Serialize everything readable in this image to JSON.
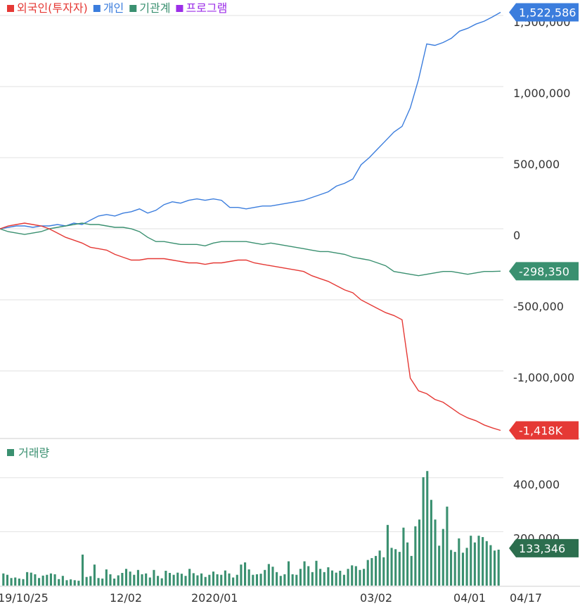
{
  "chart_data": [
    {
      "type": "line",
      "legend": [
        {
          "name": "외국인(투자자)",
          "color": "#e53935"
        },
        {
          "name": "개인",
          "color": "#3b7ddd"
        },
        {
          "name": "기관계",
          "color": "#3a9070"
        },
        {
          "name": "프로그램",
          "color": "#9c2ee8"
        }
      ],
      "y_ticks": [
        {
          "value": 1500000,
          "label": "1,500,000"
        },
        {
          "value": 1000000,
          "label": "1,000,000"
        },
        {
          "value": 500000,
          "label": "500,000"
        },
        {
          "value": 0,
          "label": "0"
        },
        {
          "value": -500000,
          "label": "-500,000"
        },
        {
          "value": -1000000,
          "label": "-1,000,000"
        }
      ],
      "ylim": [
        -1470000,
        1520000
      ],
      "grid": true,
      "x_ticks": [
        "19/10/25",
        "12/02",
        "2020/01",
        "03/02",
        "04/01",
        "04/17"
      ],
      "series": [
        {
          "name": "개인",
          "color": "#3b7ddd",
          "last_label": "1,522,586",
          "values": [
            0,
            10000,
            20000,
            20000,
            10000,
            20000,
            20000,
            30000,
            20000,
            40000,
            30000,
            60000,
            90000,
            100000,
            90000,
            110000,
            120000,
            140000,
            110000,
            130000,
            170000,
            190000,
            180000,
            200000,
            210000,
            200000,
            210000,
            200000,
            150000,
            150000,
            140000,
            150000,
            160000,
            160000,
            170000,
            180000,
            190000,
            200000,
            220000,
            240000,
            260000,
            300000,
            320000,
            350000,
            450000,
            500000,
            560000,
            620000,
            680000,
            720000,
            850000,
            1050000,
            1300000,
            1290000,
            1310000,
            1340000,
            1390000,
            1410000,
            1440000,
            1460000,
            1490000,
            1522586
          ]
        },
        {
          "name": "기관계",
          "color": "#3a9070",
          "last_label": "-298,350",
          "values": [
            0,
            -20000,
            -30000,
            -40000,
            -30000,
            -20000,
            0,
            10000,
            20000,
            30000,
            40000,
            30000,
            30000,
            20000,
            10000,
            10000,
            0,
            -20000,
            -60000,
            -90000,
            -90000,
            -100000,
            -110000,
            -110000,
            -110000,
            -120000,
            -100000,
            -90000,
            -90000,
            -90000,
            -90000,
            -100000,
            -110000,
            -100000,
            -110000,
            -120000,
            -130000,
            -140000,
            -150000,
            -160000,
            -160000,
            -170000,
            -180000,
            -200000,
            -210000,
            -220000,
            -240000,
            -260000,
            -300000,
            -310000,
            -320000,
            -330000,
            -320000,
            -310000,
            -300000,
            -300000,
            -310000,
            -320000,
            -310000,
            -300000,
            -300000,
            -298350
          ]
        },
        {
          "name": "외국인(투자자)",
          "color": "#e53935",
          "last_label": "-1,418K",
          "values": [
            0,
            20000,
            30000,
            40000,
            30000,
            20000,
            0,
            -30000,
            -60000,
            -80000,
            -100000,
            -130000,
            -140000,
            -150000,
            -180000,
            -200000,
            -220000,
            -220000,
            -210000,
            -210000,
            -210000,
            -220000,
            -230000,
            -240000,
            -240000,
            -250000,
            -240000,
            -240000,
            -230000,
            -220000,
            -220000,
            -240000,
            -250000,
            -260000,
            -270000,
            -280000,
            -290000,
            -300000,
            -330000,
            -350000,
            -370000,
            -400000,
            -430000,
            -450000,
            -500000,
            -530000,
            -560000,
            -590000,
            -610000,
            -640000,
            -1050000,
            -1140000,
            -1160000,
            -1200000,
            -1220000,
            -1260000,
            -1300000,
            -1330000,
            -1350000,
            -1380000,
            -1400000,
            -1418000
          ]
        }
      ]
    },
    {
      "type": "bar",
      "legend": [
        {
          "name": "거래량",
          "color": "#3a9070"
        }
      ],
      "color": "#3a9070",
      "y_ticks": [
        {
          "value": 400000,
          "label": "400,000"
        },
        {
          "value": 200000,
          "label": "200,000"
        }
      ],
      "ylim": [
        0,
        470000
      ],
      "grid": true,
      "last_label": "133,346",
      "values": [
        45000,
        40000,
        28000,
        30000,
        26000,
        24000,
        50000,
        48000,
        42000,
        28000,
        37000,
        40000,
        45000,
        42000,
        24000,
        36000,
        20000,
        23000,
        20000,
        18000,
        115000,
        32000,
        35000,
        78000,
        28000,
        26000,
        60000,
        42000,
        26000,
        38000,
        47000,
        62000,
        52000,
        40000,
        58000,
        42000,
        45000,
        30000,
        58000,
        36000,
        27000,
        55000,
        47000,
        40000,
        48000,
        44000,
        36000,
        62000,
        46000,
        38000,
        45000,
        32000,
        40000,
        52000,
        42000,
        40000,
        56000,
        45000,
        30000,
        40000,
        78000,
        86000,
        60000,
        40000,
        42000,
        44000,
        58000,
        80000,
        70000,
        50000,
        36000,
        42000,
        90000,
        42000,
        40000,
        62000,
        90000,
        72000,
        50000,
        92000,
        62000,
        50000,
        68000,
        56000,
        48000,
        55000,
        40000,
        62000,
        75000,
        72000,
        58000,
        62000,
        95000,
        102000,
        110000,
        130000,
        105000,
        225000,
        140000,
        135000,
        125000,
        215000,
        160000,
        110000,
        220000,
        245000,
        402000,
        425000,
        318000,
        245000,
        148000,
        210000,
        293000,
        132000,
        125000,
        175000,
        122000,
        140000,
        185000,
        160000,
        185000,
        180000,
        165000,
        150000,
        130000,
        133346
      ]
    }
  ]
}
